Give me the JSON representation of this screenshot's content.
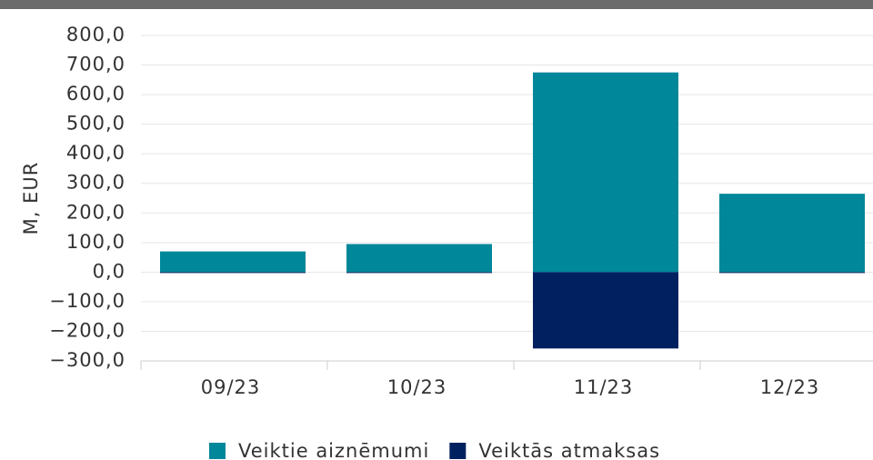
{
  "chart_data": {
    "type": "bar",
    "stacked": true,
    "y_label": "M, EUR",
    "categories": [
      "09/23",
      "10/23",
      "11/23",
      "12/23"
    ],
    "series": [
      {
        "name": "Veiktie aiznēmumi",
        "color": "#00879a",
        "values": [
          70,
          95,
          675,
          265
        ]
      },
      {
        "name": "Veiktās atmaksas",
        "color": "#00205f",
        "values": [
          -3,
          -3,
          -258,
          -3
        ]
      }
    ],
    "ylim": [
      -300,
      800
    ],
    "yticks": [
      {
        "value": -300,
        "label": "−300,0"
      },
      {
        "value": -200,
        "label": "−200,0"
      },
      {
        "value": -100,
        "label": "−100,0"
      },
      {
        "value": 0,
        "label": "0,0"
      },
      {
        "value": 100,
        "label": "100,0"
      },
      {
        "value": 200,
        "label": "200,0"
      },
      {
        "value": 300,
        "label": "300,0"
      },
      {
        "value": 400,
        "label": "400,0"
      },
      {
        "value": 500,
        "label": "500,0"
      },
      {
        "value": 600,
        "label": "600,0"
      },
      {
        "value": 700,
        "label": "700,0"
      },
      {
        "value": 800,
        "label": "800,0"
      }
    ],
    "grid": true
  }
}
